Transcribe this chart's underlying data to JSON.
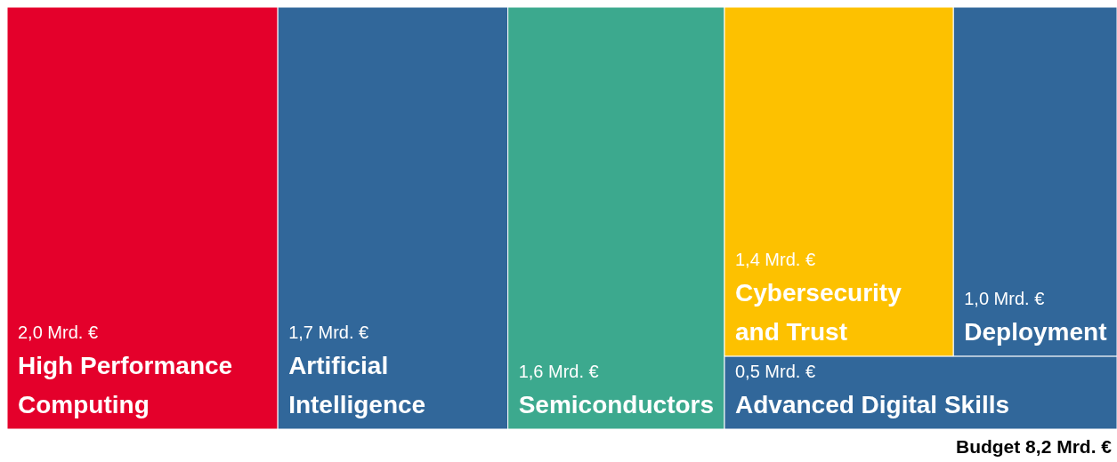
{
  "chart_data": {
    "type": "other",
    "categories": [
      "High Performance Computing",
      "Artificial Intelligence",
      "Semiconductors",
      "Cybersecurity and Trust",
      "Deployment",
      "Advanced Digital Skills"
    ],
    "values": [
      2.0,
      1.7,
      1.6,
      1.4,
      1.0,
      0.5
    ],
    "value_labels": [
      "2,0 Mrd. €",
      "1,7 Mrd. €",
      "1,6 Mrd. €",
      "1,4 Mrd. €",
      "1,0 Mrd. €",
      "0,5 Mrd. €"
    ],
    "colors": [
      "#e4002b",
      "#31679a",
      "#3ca98e",
      "#fdc100",
      "#31679a",
      "#31679a"
    ],
    "annotations": [
      "Budget 8,2 Mrd. €"
    ]
  }
}
